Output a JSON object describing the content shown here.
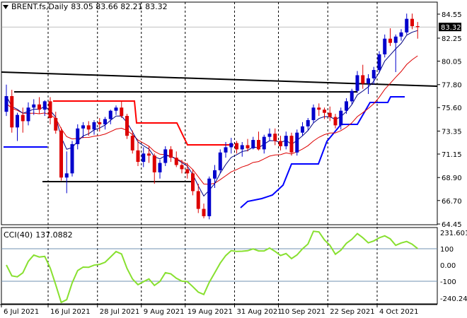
{
  "header": {
    "symbol": "BRENT.fs,Daily",
    "ohlc": "83.05 83.66 82.21 83.32"
  },
  "cci": {
    "label": "CCI(40)",
    "value": "137.0882"
  },
  "colors": {
    "background": "#ffffff",
    "up_candle": "#0000cc",
    "down_candle": "#dd0000",
    "price_line_bg": "#000000",
    "ma_fast": "#000080",
    "ma_slow": "#dd0000",
    "stop_red": "#ff0000",
    "stop_blue": "#0000ff",
    "cci_line": "#88e030",
    "cci_levels": "#7090b0",
    "grid_dash": "#000000"
  },
  "chart_data": {
    "type": "candlestick",
    "title": "BRENT.fs,Daily",
    "price_axis": {
      "ticks": [
        "84.55",
        "82.25",
        "80.05",
        "77.80",
        "75.60",
        "73.35",
        "71.15",
        "68.90",
        "66.70",
        "64.45"
      ],
      "current": "83.32",
      "range": [
        64.45,
        84.55
      ]
    },
    "x_axis_labels": [
      "6 Jul 2021",
      "16 Jul 2021",
      "28 Jul 2021",
      "9 Aug 2021",
      "19 Aug 2021",
      "31 Aug 2021",
      "10 Sep 2021",
      "22 Sep 2021",
      "4 Oct 2021"
    ],
    "candles": [
      [
        75.2,
        77.8,
        74.8,
        76.7
      ],
      [
        76.7,
        77.3,
        73.2,
        73.7
      ],
      [
        73.7,
        75.1,
        72.4,
        74.9
      ],
      [
        74.9,
        75.6,
        73.2,
        74.3
      ],
      [
        74.3,
        76.1,
        73.9,
        75.6
      ],
      [
        75.6,
        76.4,
        74.9,
        75.9
      ],
      [
        75.9,
        76.6,
        75.0,
        75.4
      ],
      [
        75.4,
        76.3,
        74.8,
        76.2
      ],
      [
        76.2,
        76.6,
        74.0,
        74.6
      ],
      [
        74.6,
        75.2,
        73.1,
        73.4
      ],
      [
        73.4,
        73.7,
        68.6,
        68.9
      ],
      [
        68.9,
        71.4,
        67.4,
        69.3
      ],
      [
        69.3,
        72.4,
        69.0,
        72.1
      ],
      [
        72.1,
        74.0,
        71.6,
        73.6
      ],
      [
        73.6,
        74.2,
        72.7,
        73.9
      ],
      [
        73.9,
        74.3,
        72.9,
        73.5
      ],
      [
        73.5,
        74.4,
        73.0,
        74.2
      ],
      [
        74.2,
        74.6,
        73.3,
        74.0
      ],
      [
        74.0,
        74.7,
        73.5,
        74.5
      ],
      [
        74.5,
        75.4,
        74.0,
        75.3
      ],
      [
        75.3,
        75.8,
        74.9,
        75.6
      ],
      [
        75.6,
        76.2,
        74.6,
        74.8
      ],
      [
        74.8,
        75.0,
        72.6,
        72.9
      ],
      [
        72.9,
        73.4,
        71.2,
        71.5
      ],
      [
        71.5,
        72.4,
        70.0,
        70.4
      ],
      [
        70.4,
        71.8,
        69.9,
        71.2
      ],
      [
        71.2,
        71.9,
        70.3,
        71.0
      ],
      [
        71.0,
        71.2,
        68.3,
        69.4
      ],
      [
        69.4,
        70.6,
        68.8,
        70.3
      ],
      [
        70.3,
        71.9,
        70.0,
        71.6
      ],
      [
        71.6,
        71.9,
        70.4,
        70.8
      ],
      [
        70.8,
        71.4,
        69.9,
        70.1
      ],
      [
        70.1,
        70.6,
        69.3,
        69.7
      ],
      [
        69.7,
        70.3,
        68.8,
        69.3
      ],
      [
        69.3,
        69.7,
        67.2,
        67.6
      ],
      [
        67.6,
        68.3,
        65.5,
        65.9
      ],
      [
        65.9,
        66.4,
        65.0,
        65.2
      ],
      [
        65.2,
        69.0,
        64.9,
        68.8
      ],
      [
        68.8,
        70.1,
        67.9,
        69.6
      ],
      [
        69.6,
        71.6,
        69.3,
        71.3
      ],
      [
        71.3,
        72.3,
        70.8,
        71.8
      ],
      [
        71.8,
        72.7,
        71.2,
        72.2
      ],
      [
        72.2,
        72.4,
        71.2,
        71.6
      ],
      [
        71.6,
        72.3,
        70.9,
        72.0
      ],
      [
        72.0,
        72.6,
        71.4,
        71.7
      ],
      [
        71.7,
        72.8,
        71.6,
        72.5
      ],
      [
        72.5,
        73.3,
        71.5,
        71.6
      ],
      [
        71.6,
        73.0,
        71.2,
        72.8
      ],
      [
        72.8,
        73.6,
        72.4,
        73.1
      ],
      [
        73.1,
        73.6,
        72.0,
        72.4
      ],
      [
        72.4,
        72.9,
        71.5,
        71.9
      ],
      [
        71.9,
        73.3,
        71.6,
        72.9
      ],
      [
        72.9,
        73.2,
        71.0,
        71.3
      ],
      [
        71.3,
        73.5,
        71.0,
        73.2
      ],
      [
        73.2,
        74.2,
        72.9,
        73.8
      ],
      [
        73.8,
        74.6,
        73.4,
        74.4
      ],
      [
        74.4,
        75.9,
        74.1,
        75.6
      ],
      [
        75.6,
        76.0,
        74.8,
        75.4
      ],
      [
        75.4,
        75.6,
        74.5,
        75.1
      ],
      [
        75.1,
        75.7,
        74.3,
        74.7
      ],
      [
        74.7,
        75.0,
        73.6,
        73.9
      ],
      [
        73.9,
        75.6,
        73.5,
        75.3
      ],
      [
        75.3,
        76.5,
        75.0,
        76.2
      ],
      [
        76.2,
        77.4,
        75.9,
        77.2
      ],
      [
        77.2,
        79.1,
        77.0,
        78.7
      ],
      [
        78.7,
        79.7,
        77.4,
        77.9
      ],
      [
        77.9,
        78.8,
        76.9,
        78.4
      ],
      [
        78.4,
        79.5,
        77.8,
        79.2
      ],
      [
        79.2,
        81.0,
        78.9,
        80.7
      ],
      [
        80.7,
        82.6,
        80.4,
        82.2
      ],
      [
        82.2,
        83.2,
        81.5,
        81.8
      ],
      [
        81.8,
        82.6,
        79.0,
        82.4
      ],
      [
        82.4,
        83.1,
        82.0,
        82.8
      ],
      [
        82.8,
        84.6,
        82.6,
        84.1
      ],
      [
        84.1,
        84.6,
        83.1,
        83.4
      ],
      [
        83.4,
        83.8,
        82.2,
        83.3
      ]
    ]
  }
}
